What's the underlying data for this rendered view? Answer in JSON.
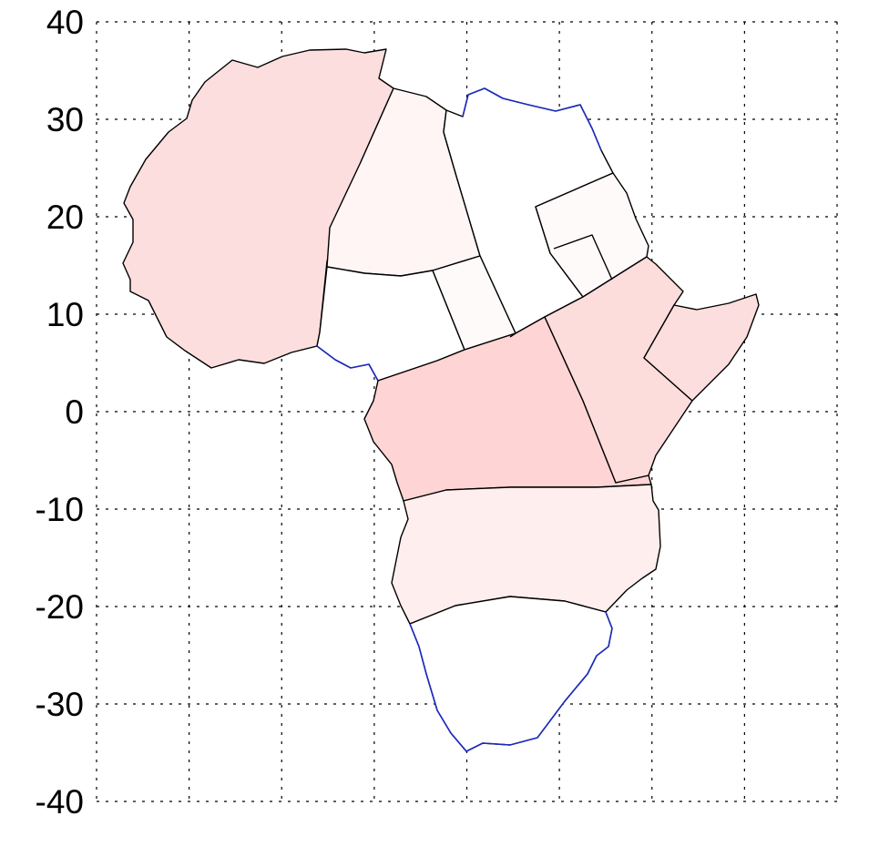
{
  "chart_data": {
    "type": "map",
    "title": "",
    "xlabel": "",
    "ylabel": "",
    "ylim": [
      -40,
      40
    ],
    "yticks": [
      "40",
      "30",
      "20",
      "10",
      "0",
      "-10",
      "-20",
      "-30",
      "-40"
    ],
    "grid": true,
    "region_colors": {
      "northwest": "#fddede",
      "north_central": "#fff5f5",
      "libya_egypt": "#ffffff",
      "sudan": "#fffafa",
      "sahel_center": "#ffffff",
      "chad_niger_strip": "#fffafa",
      "central": "#ffd4d4",
      "east": "#fddcdc",
      "horn": "#fddede",
      "south_central": "#ffeeee",
      "southern": "#ffffff"
    },
    "coast_color": "#1a2bbf",
    "border_color": "#000000"
  }
}
